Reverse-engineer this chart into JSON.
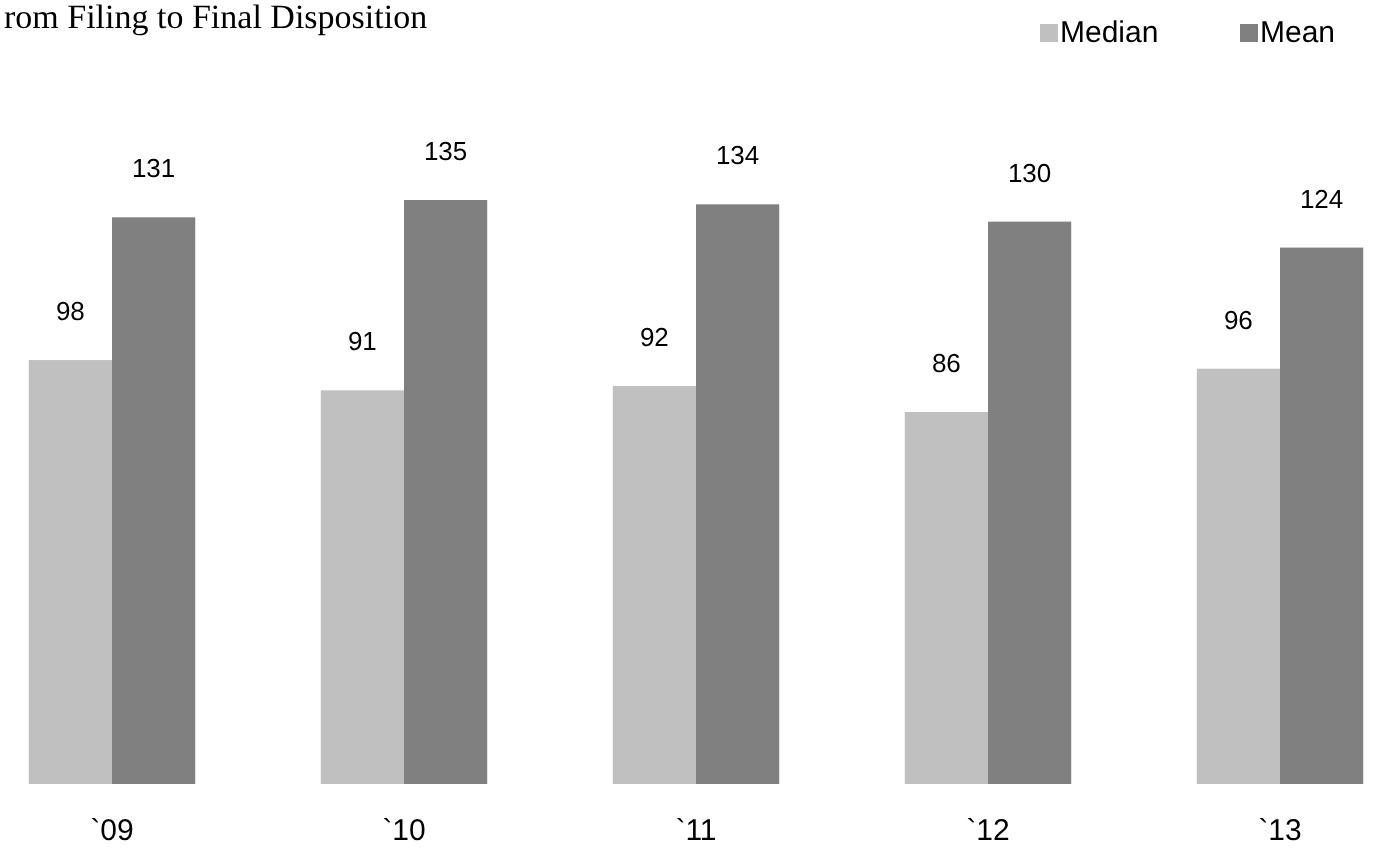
{
  "chart_data": {
    "type": "bar",
    "title": "rom Filing to Final Disposition",
    "categories": [
      "`09",
      "`10",
      "`11",
      "`12",
      "`13"
    ],
    "series": [
      {
        "name": "Median",
        "color": "#c0c0c0",
        "values": [
          98,
          91,
          92,
          86,
          96
        ]
      },
      {
        "name": "Mean",
        "color": "#808080",
        "values": [
          131,
          135,
          134,
          130,
          124
        ]
      }
    ],
    "data_labels": true,
    "legend": "top right"
  }
}
